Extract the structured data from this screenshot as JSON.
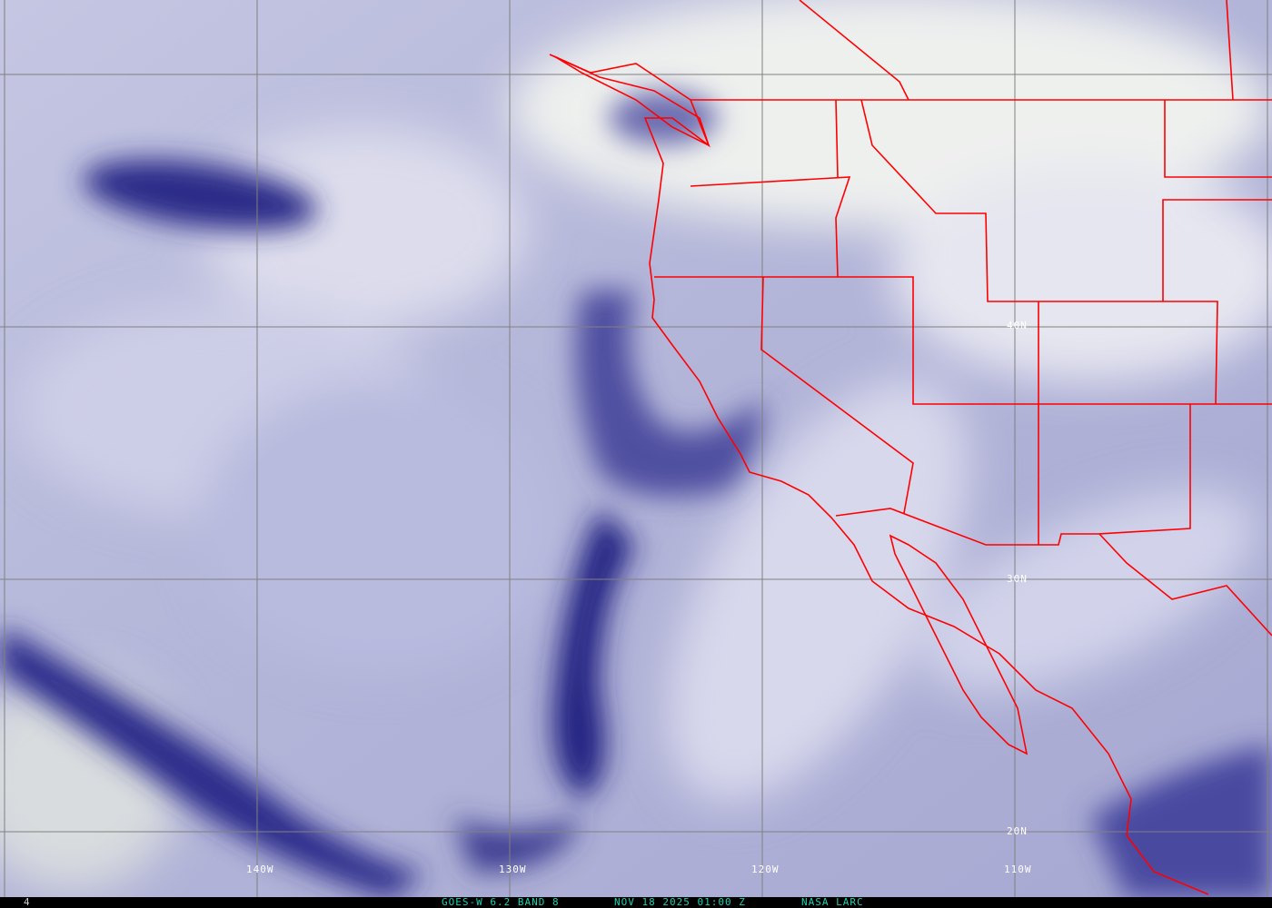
{
  "map": {
    "type": "satellite water vapor imagery",
    "colors": {
      "coastline": "#ff0000",
      "grid": "#808080",
      "dry": "#1a1a78",
      "moist": "#e8e8f4",
      "footer_text": "#19d3b0"
    },
    "longitude_labels": [
      "140W",
      "130W",
      "120W",
      "110W"
    ],
    "latitude_labels": [
      "40N",
      "30N",
      "20N"
    ]
  },
  "footer": {
    "frame_number": "4",
    "satellite_band": "GOES-W 6.2 BAND 8",
    "timestamp": "NOV 18 2025 01:00 Z",
    "credit": "NASA LARC"
  }
}
